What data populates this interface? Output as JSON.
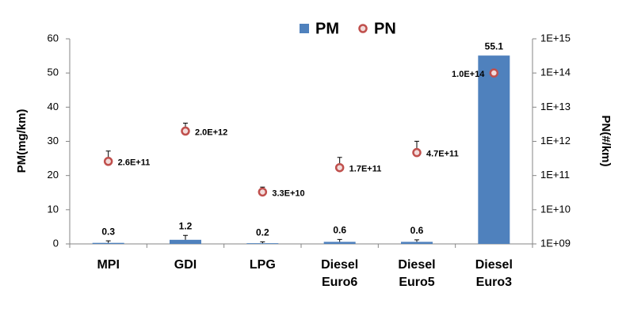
{
  "chart_data": {
    "type": "bar",
    "categories": [
      "MPI",
      "GDI",
      "LPG",
      "Diesel\nEuro6",
      "Diesel\nEuro5",
      "Diesel\nEuro3"
    ],
    "series": [
      {
        "name": "PM",
        "type": "bar",
        "color": "#4f81bd",
        "values": [
          0.3,
          1.2,
          0.2,
          0.6,
          0.6,
          55.1
        ],
        "errors": [
          0.6,
          1.3,
          0.4,
          0.7,
          0.6,
          null
        ]
      },
      {
        "name": "PN",
        "type": "scatter",
        "axis": "y2",
        "color": "#c0504d",
        "values": [
          260000000000,
          2000000000000,
          33000000000,
          170000000000,
          470000000000,
          100000000000000
        ],
        "value_labels": [
          "2.6E+11",
          "2.0E+12",
          "3.3E+10",
          "1.7E+11",
          "4.7E+11",
          "1.0E+14"
        ],
        "errors": [
          260000000000,
          1400000000000,
          13000000000,
          170000000000,
          540000000000,
          null
        ]
      }
    ],
    "ylabel": "PM(mg/km)",
    "y2label": "PN(#/km)",
    "ylim": [
      0,
      60
    ],
    "yticks": [
      0,
      10,
      20,
      30,
      40,
      50,
      60
    ],
    "y2lim": [
      1000000000,
      1000000000000000
    ],
    "y2log": true,
    "y2ticks": [
      {
        "value": 1000000000,
        "label": "1E+09"
      },
      {
        "value": 10000000000,
        "label": "1E+10"
      },
      {
        "value": 100000000000,
        "label": "1E+11"
      },
      {
        "value": 1000000000000,
        "label": "1E+12"
      },
      {
        "value": 10000000000000,
        "label": "1E+13"
      },
      {
        "value": 100000000000000,
        "label": "1E+14"
      },
      {
        "value": 1000000000000000,
        "label": "1E+15"
      }
    ],
    "grid": false,
    "legend": "top"
  }
}
